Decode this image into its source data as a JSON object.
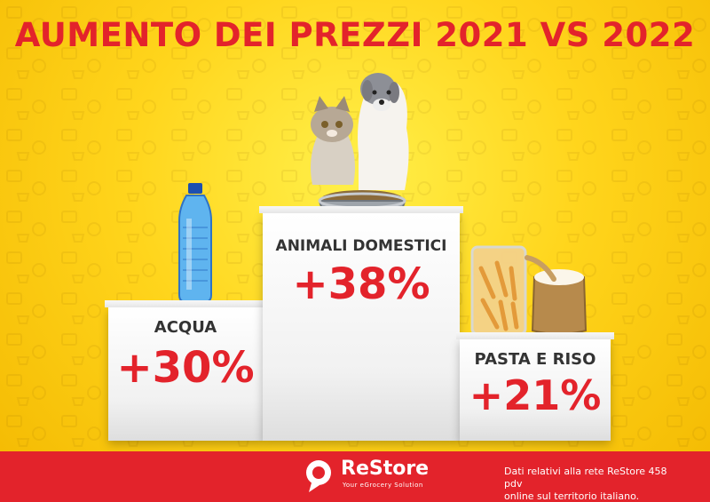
{
  "title": "AUMENTO DEI PREZZI 2021 VS 2022",
  "podiums": {
    "left": {
      "label": "ACQUA",
      "value": "+30%"
    },
    "center": {
      "label": "ANIMALI DOMESTICI",
      "value": "+38%"
    },
    "right": {
      "label": "PASTA E RISO",
      "value": "+21%"
    }
  },
  "footer": {
    "brand": "ReStore",
    "tagline": "Your eGrocery Solution",
    "note_line1": "Dati relativi alla rete ReStore 458 pdv",
    "note_line2": "online sul territorio italiano."
  },
  "colors": {
    "accent": "#e3232b",
    "background": "#ffd51c"
  }
}
